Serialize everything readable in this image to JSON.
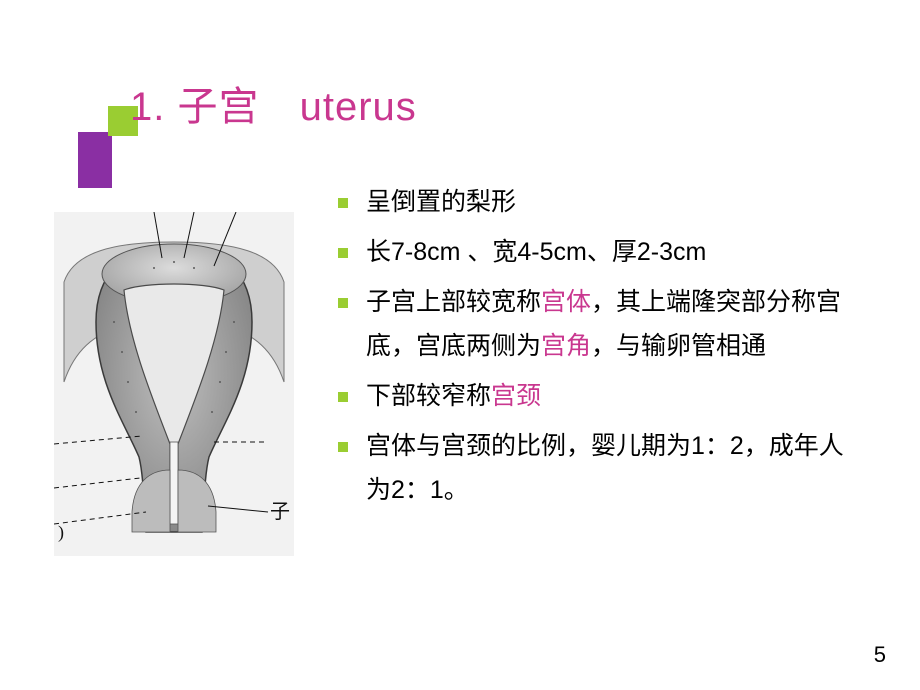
{
  "title": {
    "num": "1.",
    "zh": "子宫",
    "en": "uterus"
  },
  "bullets": [
    {
      "segments": [
        {
          "t": "呈倒置的梨形",
          "em": false
        }
      ]
    },
    {
      "segments": [
        {
          "t": "长7-8cm 、宽4-5cm、厚2-3cm",
          "em": false
        }
      ]
    },
    {
      "segments": [
        {
          "t": "子宫上部较宽称",
          "em": false
        },
        {
          "t": "宫体",
          "em": true
        },
        {
          "t": "，其上端隆突部分称宫底，宫底两侧为",
          "em": false
        },
        {
          "t": "宫角",
          "em": true
        },
        {
          "t": "，与输卵管相通",
          "em": false
        }
      ]
    },
    {
      "segments": [
        {
          "t": "下部较窄称",
          "em": false
        },
        {
          "t": "宫颈",
          "em": true
        }
      ]
    },
    {
      "segments": [
        {
          "t": "宫体与宫颈的比例，婴儿期为1：2，成年人为2：1。",
          "em": false
        }
      ]
    }
  ],
  "figure": {
    "label_right": "子",
    "label_left": ")"
  },
  "colors": {
    "accent_magenta": "#c9378f",
    "accent_purple": "#8a2fa3",
    "accent_green": "#9acd32",
    "text": "#010101",
    "bg": "#ffffff"
  },
  "page_number": "5"
}
